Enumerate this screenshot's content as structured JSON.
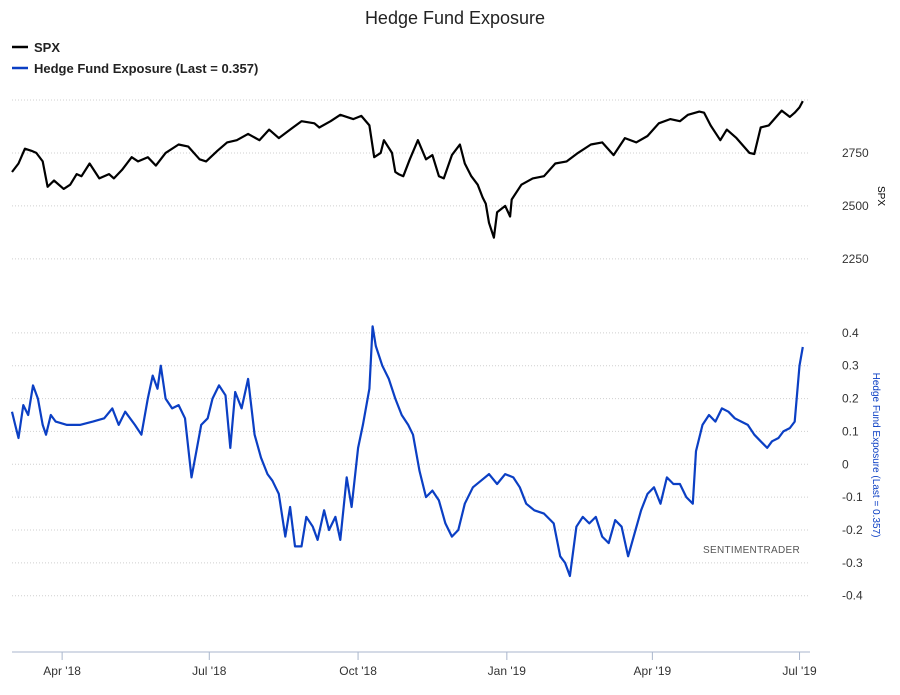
{
  "chart_data": {
    "type": "line",
    "title": "Hedge Fund Exposure",
    "legend": {
      "placement": "top-left",
      "entries": [
        {
          "name": "SPX",
          "color": "#000000"
        },
        {
          "name": "Hedge Fund Exposure (Last = 0.357)",
          "color": "#0b3fc4"
        }
      ]
    },
    "watermark": "SENTIMENTRADER",
    "x_axis": {
      "ticks": [
        "Apr '18",
        "Jul '18",
        "Oct '18",
        "Jan '19",
        "Apr '19",
        "Jul '19"
      ],
      "tick_dates": [
        "2018-04-01",
        "2018-07-01",
        "2018-10-01",
        "2019-01-01",
        "2019-04-01",
        "2019-07-01"
      ],
      "range": [
        "2018-03-01",
        "2019-07-05"
      ]
    },
    "y_axes": [
      {
        "id": "spx",
        "label": "SPX",
        "ticks": [
          2250,
          2500,
          2750
        ],
        "range": [
          2150,
          3000
        ],
        "color": "#000000",
        "grid": true
      },
      {
        "id": "hfe",
        "label": "Hedge Fund Exposure (Last = 0.357)",
        "ticks": [
          0.4,
          0.3,
          0.2,
          0.1,
          0,
          -0.1,
          -0.2,
          -0.3,
          -0.4
        ],
        "range": [
          -0.55,
          0.5
        ],
        "color": "#0b3fc4",
        "grid": true
      }
    ],
    "series": [
      {
        "name": "SPX",
        "axis": "spx",
        "color": "#000000",
        "points": [
          [
            "2018-03-01",
            2660
          ],
          [
            "2018-03-05",
            2700
          ],
          [
            "2018-03-09",
            2770
          ],
          [
            "2018-03-13",
            2760
          ],
          [
            "2018-03-16",
            2750
          ],
          [
            "2018-03-20",
            2710
          ],
          [
            "2018-03-23",
            2590
          ],
          [
            "2018-03-27",
            2620
          ],
          [
            "2018-04-02",
            2580
          ],
          [
            "2018-04-06",
            2600
          ],
          [
            "2018-04-10",
            2650
          ],
          [
            "2018-04-13",
            2640
          ],
          [
            "2018-04-18",
            2700
          ],
          [
            "2018-04-24",
            2630
          ],
          [
            "2018-04-30",
            2650
          ],
          [
            "2018-05-03",
            2630
          ],
          [
            "2018-05-08",
            2670
          ],
          [
            "2018-05-14",
            2730
          ],
          [
            "2018-05-18",
            2710
          ],
          [
            "2018-05-24",
            2730
          ],
          [
            "2018-05-29",
            2690
          ],
          [
            "2018-06-04",
            2750
          ],
          [
            "2018-06-12",
            2790
          ],
          [
            "2018-06-18",
            2780
          ],
          [
            "2018-06-25",
            2720
          ],
          [
            "2018-06-29",
            2710
          ],
          [
            "2018-07-06",
            2760
          ],
          [
            "2018-07-12",
            2800
          ],
          [
            "2018-07-18",
            2810
          ],
          [
            "2018-07-25",
            2840
          ],
          [
            "2018-08-01",
            2810
          ],
          [
            "2018-08-07",
            2860
          ],
          [
            "2018-08-13",
            2820
          ],
          [
            "2018-08-20",
            2860
          ],
          [
            "2018-08-27",
            2900
          ],
          [
            "2018-09-04",
            2890
          ],
          [
            "2018-09-07",
            2870
          ],
          [
            "2018-09-14",
            2900
          ],
          [
            "2018-09-20",
            2930
          ],
          [
            "2018-09-28",
            2910
          ],
          [
            "2018-10-03",
            2925
          ],
          [
            "2018-10-08",
            2880
          ],
          [
            "2018-10-11",
            2730
          ],
          [
            "2018-10-15",
            2750
          ],
          [
            "2018-10-17",
            2810
          ],
          [
            "2018-10-22",
            2750
          ],
          [
            "2018-10-24",
            2660
          ],
          [
            "2018-10-26",
            2650
          ],
          [
            "2018-10-29",
            2640
          ],
          [
            "2018-11-02",
            2720
          ],
          [
            "2018-11-07",
            2810
          ],
          [
            "2018-11-12",
            2720
          ],
          [
            "2018-11-16",
            2740
          ],
          [
            "2018-11-20",
            2640
          ],
          [
            "2018-11-23",
            2630
          ],
          [
            "2018-11-28",
            2740
          ],
          [
            "2018-12-03",
            2790
          ],
          [
            "2018-12-06",
            2700
          ],
          [
            "2018-12-10",
            2640
          ],
          [
            "2018-12-14",
            2600
          ],
          [
            "2018-12-17",
            2540
          ],
          [
            "2018-12-19",
            2510
          ],
          [
            "2018-12-21",
            2420
          ],
          [
            "2018-12-24",
            2350
          ],
          [
            "2018-12-26",
            2470
          ],
          [
            "2018-12-31",
            2500
          ],
          [
            "2019-01-03",
            2450
          ],
          [
            "2019-01-04",
            2530
          ],
          [
            "2019-01-10",
            2600
          ],
          [
            "2019-01-17",
            2630
          ],
          [
            "2019-01-24",
            2640
          ],
          [
            "2019-01-31",
            2700
          ],
          [
            "2019-02-07",
            2710
          ],
          [
            "2019-02-14",
            2750
          ],
          [
            "2019-02-22",
            2790
          ],
          [
            "2019-03-01",
            2800
          ],
          [
            "2019-03-08",
            2740
          ],
          [
            "2019-03-15",
            2820
          ],
          [
            "2019-03-22",
            2800
          ],
          [
            "2019-03-29",
            2830
          ],
          [
            "2019-04-05",
            2890
          ],
          [
            "2019-04-12",
            2910
          ],
          [
            "2019-04-18",
            2900
          ],
          [
            "2019-04-23",
            2930
          ],
          [
            "2019-04-30",
            2945
          ],
          [
            "2019-05-03",
            2940
          ],
          [
            "2019-05-07",
            2880
          ],
          [
            "2019-05-13",
            2810
          ],
          [
            "2019-05-17",
            2860
          ],
          [
            "2019-05-23",
            2820
          ],
          [
            "2019-05-31",
            2750
          ],
          [
            "2019-06-03",
            2745
          ],
          [
            "2019-06-07",
            2870
          ],
          [
            "2019-06-12",
            2880
          ],
          [
            "2019-06-20",
            2950
          ],
          [
            "2019-06-25",
            2920
          ],
          [
            "2019-06-28",
            2940
          ],
          [
            "2019-07-01",
            2965
          ],
          [
            "2019-07-03",
            2995
          ]
        ]
      },
      {
        "name": "Hedge Fund Exposure (Last = 0.357)",
        "axis": "hfe",
        "color": "#0b3fc4",
        "points": [
          [
            "2018-03-01",
            0.16
          ],
          [
            "2018-03-03",
            0.12
          ],
          [
            "2018-03-05",
            0.08
          ],
          [
            "2018-03-08",
            0.18
          ],
          [
            "2018-03-11",
            0.15
          ],
          [
            "2018-03-14",
            0.24
          ],
          [
            "2018-03-17",
            0.2
          ],
          [
            "2018-03-20",
            0.12
          ],
          [
            "2018-03-22",
            0.09
          ],
          [
            "2018-03-25",
            0.15
          ],
          [
            "2018-03-28",
            0.13
          ],
          [
            "2018-04-04",
            0.12
          ],
          [
            "2018-04-12",
            0.12
          ],
          [
            "2018-04-20",
            0.13
          ],
          [
            "2018-04-27",
            0.14
          ],
          [
            "2018-05-02",
            0.17
          ],
          [
            "2018-05-06",
            0.12
          ],
          [
            "2018-05-10",
            0.16
          ],
          [
            "2018-05-16",
            0.12
          ],
          [
            "2018-05-20",
            0.09
          ],
          [
            "2018-05-24",
            0.2
          ],
          [
            "2018-05-27",
            0.27
          ],
          [
            "2018-05-30",
            0.23
          ],
          [
            "2018-06-01",
            0.3
          ],
          [
            "2018-06-04",
            0.2
          ],
          [
            "2018-06-08",
            0.17
          ],
          [
            "2018-06-12",
            0.18
          ],
          [
            "2018-06-16",
            0.14
          ],
          [
            "2018-06-20",
            -0.04
          ],
          [
            "2018-06-23",
            0.04
          ],
          [
            "2018-06-26",
            0.12
          ],
          [
            "2018-06-30",
            0.14
          ],
          [
            "2018-07-03",
            0.2
          ],
          [
            "2018-07-07",
            0.24
          ],
          [
            "2018-07-11",
            0.21
          ],
          [
            "2018-07-14",
            0.05
          ],
          [
            "2018-07-17",
            0.22
          ],
          [
            "2018-07-21",
            0.17
          ],
          [
            "2018-07-25",
            0.26
          ],
          [
            "2018-07-29",
            0.09
          ],
          [
            "2018-08-02",
            0.02
          ],
          [
            "2018-08-06",
            -0.03
          ],
          [
            "2018-08-09",
            -0.05
          ],
          [
            "2018-08-13",
            -0.09
          ],
          [
            "2018-08-17",
            -0.22
          ],
          [
            "2018-08-20",
            -0.13
          ],
          [
            "2018-08-23",
            -0.25
          ],
          [
            "2018-08-27",
            -0.25
          ],
          [
            "2018-08-30",
            -0.16
          ],
          [
            "2018-09-03",
            -0.19
          ],
          [
            "2018-09-06",
            -0.23
          ],
          [
            "2018-09-10",
            -0.14
          ],
          [
            "2018-09-13",
            -0.2
          ],
          [
            "2018-09-17",
            -0.16
          ],
          [
            "2018-09-20",
            -0.23
          ],
          [
            "2018-09-24",
            -0.04
          ],
          [
            "2018-09-27",
            -0.13
          ],
          [
            "2018-10-01",
            0.05
          ],
          [
            "2018-10-04",
            0.12
          ],
          [
            "2018-10-08",
            0.23
          ],
          [
            "2018-10-10",
            0.42
          ],
          [
            "2018-10-12",
            0.36
          ],
          [
            "2018-10-16",
            0.3
          ],
          [
            "2018-10-20",
            0.26
          ],
          [
            "2018-10-24",
            0.2
          ],
          [
            "2018-10-28",
            0.15
          ],
          [
            "2018-11-01",
            0.12
          ],
          [
            "2018-11-04",
            0.09
          ],
          [
            "2018-11-08",
            -0.02
          ],
          [
            "2018-11-12",
            -0.1
          ],
          [
            "2018-11-16",
            -0.08
          ],
          [
            "2018-11-20",
            -0.11
          ],
          [
            "2018-11-24",
            -0.18
          ],
          [
            "2018-11-28",
            -0.22
          ],
          [
            "2018-12-02",
            -0.2
          ],
          [
            "2018-12-06",
            -0.12
          ],
          [
            "2018-12-11",
            -0.07
          ],
          [
            "2018-12-16",
            -0.05
          ],
          [
            "2018-12-21",
            -0.03
          ],
          [
            "2018-12-26",
            -0.06
          ],
          [
            "2018-12-31",
            -0.03
          ],
          [
            "2019-01-05",
            -0.04
          ],
          [
            "2019-01-09",
            -0.07
          ],
          [
            "2019-01-13",
            -0.12
          ],
          [
            "2019-01-18",
            -0.14
          ],
          [
            "2019-01-24",
            -0.15
          ],
          [
            "2019-01-30",
            -0.18
          ],
          [
            "2019-02-03",
            -0.28
          ],
          [
            "2019-02-06",
            -0.3
          ],
          [
            "2019-02-09",
            -0.34
          ],
          [
            "2019-02-13",
            -0.19
          ],
          [
            "2019-02-17",
            -0.16
          ],
          [
            "2019-02-21",
            -0.18
          ],
          [
            "2019-02-25",
            -0.16
          ],
          [
            "2019-03-01",
            -0.22
          ],
          [
            "2019-03-05",
            -0.24
          ],
          [
            "2019-03-09",
            -0.17
          ],
          [
            "2019-03-13",
            -0.19
          ],
          [
            "2019-03-17",
            -0.28
          ],
          [
            "2019-03-21",
            -0.21
          ],
          [
            "2019-03-25",
            -0.14
          ],
          [
            "2019-03-29",
            -0.09
          ],
          [
            "2019-04-02",
            -0.07
          ],
          [
            "2019-04-06",
            -0.12
          ],
          [
            "2019-04-10",
            -0.04
          ],
          [
            "2019-04-14",
            -0.06
          ],
          [
            "2019-04-18",
            -0.06
          ],
          [
            "2019-04-22",
            -0.1
          ],
          [
            "2019-04-26",
            -0.12
          ],
          [
            "2019-04-28",
            0.04
          ],
          [
            "2019-05-02",
            0.12
          ],
          [
            "2019-05-06",
            0.15
          ],
          [
            "2019-05-10",
            0.13
          ],
          [
            "2019-05-14",
            0.17
          ],
          [
            "2019-05-18",
            0.16
          ],
          [
            "2019-05-22",
            0.14
          ],
          [
            "2019-05-26",
            0.13
          ],
          [
            "2019-05-30",
            0.12
          ],
          [
            "2019-06-03",
            0.09
          ],
          [
            "2019-06-07",
            0.07
          ],
          [
            "2019-06-11",
            0.05
          ],
          [
            "2019-06-14",
            0.07
          ],
          [
            "2019-06-18",
            0.08
          ],
          [
            "2019-06-21",
            0.1
          ],
          [
            "2019-06-25",
            0.11
          ],
          [
            "2019-06-28",
            0.13
          ],
          [
            "2019-07-01",
            0.3
          ],
          [
            "2019-07-03",
            0.357
          ]
        ]
      }
    ]
  }
}
